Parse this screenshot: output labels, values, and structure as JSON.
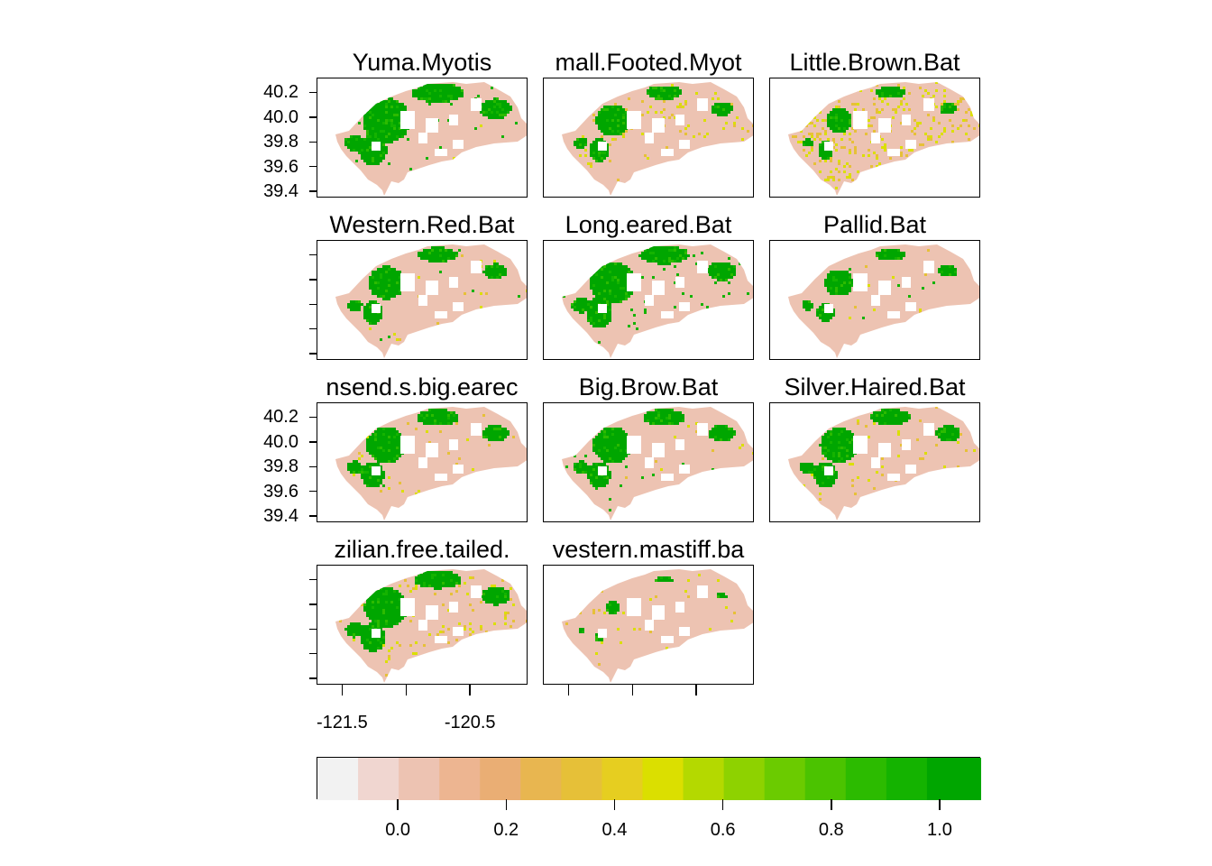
{
  "chart_data": {
    "type": "heatmap",
    "layout": "4x3 panel grid",
    "panels": [
      {
        "title": "Yuma.Myotis",
        "green_cover": 0.35,
        "yellow_cover": 0.01
      },
      {
        "title": "mall.Footed.Myot",
        "green_cover": 0.2,
        "yellow_cover": 0.05
      },
      {
        "title": "Little.Brown.Bat",
        "green_cover": 0.12,
        "yellow_cover": 0.15
      },
      {
        "title": "Western.Red.Bat",
        "green_cover": 0.22,
        "yellow_cover": 0.01
      },
      {
        "title": "Long.eared.Bat",
        "green_cover": 0.32,
        "yellow_cover": 0.0
      },
      {
        "title": "Pallid.Bat",
        "green_cover": 0.15,
        "yellow_cover": 0.01
      },
      {
        "title": "nsend.s.big.earec",
        "green_cover": 0.26,
        "yellow_cover": 0.02
      },
      {
        "title": "Big.Brow.Bat",
        "green_cover": 0.26,
        "yellow_cover": 0.01
      },
      {
        "title": "Silver.Haired.Bat",
        "green_cover": 0.24,
        "yellow_cover": 0.03
      },
      {
        "title": "zilian.free.tailed.",
        "green_cover": 0.3,
        "yellow_cover": 0.06
      },
      {
        "title": "vestern.mastiff.ba",
        "green_cover": 0.005,
        "yellow_cover": 0.02
      }
    ],
    "y_ticks": [
      "40.2",
      "40.0",
      "39.8",
      "39.6",
      "39.4"
    ],
    "y_tick_values": [
      40.2,
      40.0,
      39.8,
      39.6,
      39.4
    ],
    "x_tick_labels": [
      "-121.5",
      "-120.5"
    ],
    "x_tick_values": [
      -121.5,
      -121.0,
      -120.5
    ],
    "xlim": [
      -121.7,
      -120.05
    ],
    "ylim": [
      39.35,
      40.32
    ],
    "legend": {
      "labels": [
        "0.0",
        "0.2",
        "0.4",
        "0.6",
        "0.8",
        "1.0"
      ],
      "label_values": [
        0.0,
        0.2,
        0.4,
        0.6,
        0.8,
        1.0
      ],
      "breaks": [
        -0.15,
        -0.075,
        0.0,
        0.075,
        0.15,
        0.225,
        0.3,
        0.375,
        0.45,
        0.525,
        0.6,
        0.675,
        0.75,
        0.825,
        0.9,
        0.975,
        1.075
      ],
      "colors": [
        "#F2F2F2",
        "#F0D6D0",
        "#EDC3B2",
        "#EDB591",
        "#EAAE74",
        "#E8B650",
        "#E6C038",
        "#E6CE20",
        "#DBDF00",
        "#B4D900",
        "#8ED200",
        "#6BCB00",
        "#4BC300",
        "#2CBB00",
        "#14B300",
        "#00A600"
      ]
    }
  }
}
